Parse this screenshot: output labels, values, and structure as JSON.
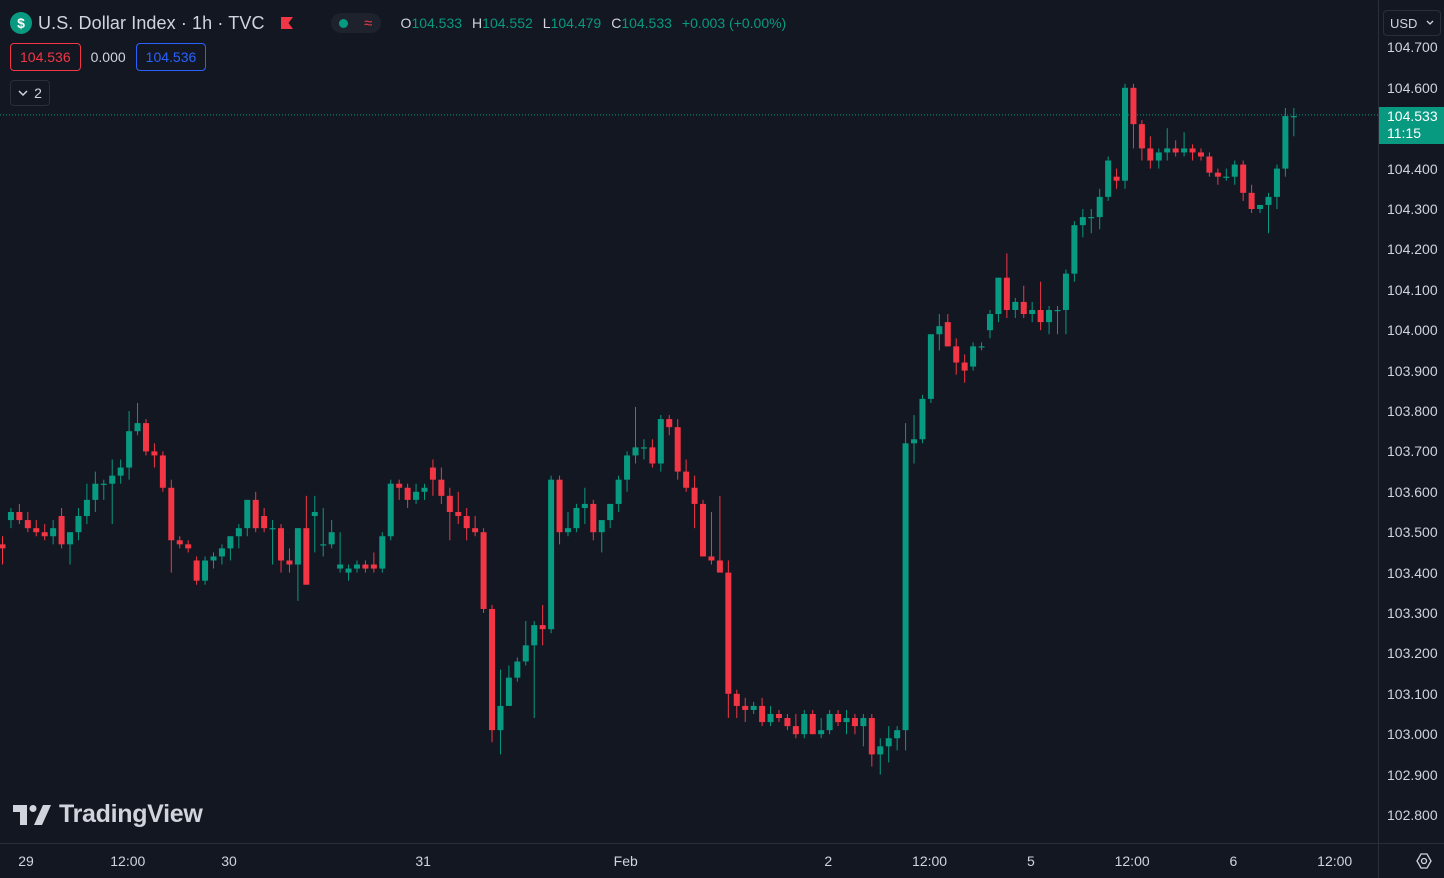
{
  "header": {
    "symbol_icon": "$",
    "title": "U.S. Dollar Index · 1h · TVC",
    "ohlc": {
      "o_label": "O",
      "o": "104.533",
      "h_label": "H",
      "h": "104.552",
      "l_label": "L",
      "l": "104.479",
      "c_label": "C",
      "c": "104.533",
      "change": "+0.003 (+0.00%)"
    }
  },
  "trade": {
    "sell": "104.536",
    "spread": "0.000",
    "buy": "104.536"
  },
  "indicators": {
    "count": "2"
  },
  "logo": {
    "text": "TradingView"
  },
  "price_axis": {
    "currency": "USD",
    "labels": [
      "104.700",
      "104.600",
      "104.400",
      "104.300",
      "104.200",
      "104.100",
      "104.000",
      "103.900",
      "103.800",
      "103.700",
      "103.600",
      "103.500",
      "103.400",
      "103.300",
      "103.200",
      "103.100",
      "103.000",
      "102.900",
      "102.800"
    ],
    "current_price": "104.533",
    "countdown": "11:15"
  },
  "time_axis": {
    "labels": [
      {
        "text": "29",
        "i": 0
      },
      {
        "text": "12:00",
        "i": 12
      },
      {
        "text": "30",
        "i": 24
      },
      {
        "text": "31",
        "i": 47
      },
      {
        "text": "Feb",
        "i": 71
      },
      {
        "text": "2",
        "i": 95
      },
      {
        "text": "12:00",
        "i": 107
      },
      {
        "text": "5",
        "i": 119
      },
      {
        "text": "12:00",
        "i": 131
      },
      {
        "text": "6",
        "i": 143
      },
      {
        "text": "12:00",
        "i": 155
      }
    ]
  },
  "colors": {
    "up": "#089981",
    "down": "#f23645",
    "background": "#131722"
  },
  "chart_data": {
    "type": "candlestick",
    "interval": "1h",
    "y_range": [
      102.8,
      104.7
    ],
    "last_price": 104.533,
    "candles": [
      [
        103.47,
        103.49,
        103.42,
        103.46
      ],
      [
        103.53,
        103.56,
        103.51,
        103.55
      ],
      [
        103.55,
        103.57,
        103.52,
        103.53
      ],
      [
        103.53,
        103.55,
        103.5,
        103.51
      ],
      [
        103.51,
        103.53,
        103.49,
        103.5
      ],
      [
        103.5,
        103.52,
        103.48,
        103.49
      ],
      [
        103.49,
        103.53,
        103.47,
        103.51
      ],
      [
        103.54,
        103.56,
        103.46,
        103.47
      ],
      [
        103.47,
        103.5,
        103.42,
        103.5
      ],
      [
        103.5,
        103.56,
        103.48,
        103.54
      ],
      [
        103.54,
        103.62,
        103.52,
        103.58
      ],
      [
        103.58,
        103.65,
        103.55,
        103.62
      ],
      [
        103.62,
        103.63,
        103.58,
        103.62
      ],
      [
        103.62,
        103.68,
        103.52,
        103.64
      ],
      [
        103.64,
        103.68,
        103.62,
        103.66
      ],
      [
        103.66,
        103.8,
        103.63,
        103.75
      ],
      [
        103.75,
        103.82,
        103.74,
        103.77
      ],
      [
        103.77,
        103.78,
        103.69,
        103.7
      ],
      [
        103.7,
        103.72,
        103.66,
        103.69
      ],
      [
        103.69,
        103.7,
        103.6,
        103.61
      ],
      [
        103.61,
        103.63,
        103.4,
        103.48
      ],
      [
        103.48,
        103.49,
        103.46,
        103.47
      ],
      [
        103.47,
        103.48,
        103.45,
        103.46
      ],
      [
        103.43,
        103.44,
        103.37,
        103.38
      ],
      [
        103.38,
        103.44,
        103.37,
        103.43
      ],
      [
        103.43,
        103.45,
        103.41,
        103.44
      ],
      [
        103.44,
        103.47,
        103.42,
        103.46
      ],
      [
        103.46,
        103.49,
        103.43,
        103.49
      ],
      [
        103.49,
        103.52,
        103.46,
        103.51
      ],
      [
        103.51,
        103.58,
        103.49,
        103.58
      ],
      [
        103.58,
        103.6,
        103.5,
        103.51
      ],
      [
        103.54,
        103.56,
        103.5,
        103.51
      ],
      [
        103.51,
        103.53,
        103.42,
        103.51
      ],
      [
        103.51,
        103.52,
        103.4,
        103.43
      ],
      [
        103.43,
        103.46,
        103.4,
        103.42
      ],
      [
        103.42,
        103.51,
        103.33,
        103.51
      ],
      [
        103.51,
        103.59,
        103.37,
        103.37
      ],
      [
        103.54,
        103.59,
        103.45,
        103.55
      ],
      [
        103.47,
        103.56,
        103.44,
        103.47
      ],
      [
        103.47,
        103.53,
        103.46,
        103.5
      ],
      [
        103.41,
        103.5,
        103.4,
        103.42
      ],
      [
        103.4,
        103.42,
        103.38,
        103.41
      ],
      [
        103.41,
        103.43,
        103.4,
        103.42
      ],
      [
        103.42,
        103.43,
        103.4,
        103.41
      ],
      [
        103.42,
        103.45,
        103.4,
        103.41
      ],
      [
        103.41,
        103.5,
        103.4,
        103.49
      ],
      [
        103.49,
        103.63,
        103.48,
        103.62
      ],
      [
        103.62,
        103.63,
        103.58,
        103.61
      ],
      [
        103.61,
        103.62,
        103.56,
        103.58
      ],
      [
        103.58,
        103.62,
        103.57,
        103.6
      ],
      [
        103.6,
        103.62,
        103.58,
        103.61
      ],
      [
        103.66,
        103.68,
        103.59,
        103.63
      ],
      [
        103.63,
        103.66,
        103.57,
        103.59
      ],
      [
        103.59,
        103.61,
        103.48,
        103.55
      ],
      [
        103.55,
        103.6,
        103.52,
        103.54
      ],
      [
        103.54,
        103.56,
        103.48,
        103.51
      ],
      [
        103.51,
        103.54,
        103.49,
        103.5
      ],
      [
        103.5,
        103.51,
        103.3,
        103.31
      ],
      [
        103.31,
        103.32,
        102.98,
        103.01
      ],
      [
        103.01,
        103.16,
        102.95,
        103.07
      ],
      [
        103.07,
        103.17,
        103.07,
        103.14
      ],
      [
        103.14,
        103.19,
        103.13,
        103.18
      ],
      [
        103.18,
        103.28,
        103.17,
        103.22
      ],
      [
        103.22,
        103.28,
        103.04,
        103.27
      ],
      [
        103.27,
        103.32,
        103.22,
        103.26
      ],
      [
        103.26,
        103.64,
        103.25,
        103.63
      ],
      [
        103.63,
        103.64,
        103.47,
        103.5
      ],
      [
        103.5,
        103.55,
        103.49,
        103.51
      ],
      [
        103.51,
        103.57,
        103.5,
        103.56
      ],
      [
        103.56,
        103.61,
        103.52,
        103.57
      ],
      [
        103.57,
        103.58,
        103.48,
        103.5
      ],
      [
        103.5,
        103.52,
        103.45,
        103.53
      ],
      [
        103.53,
        103.57,
        103.51,
        103.57
      ],
      [
        103.57,
        103.64,
        103.55,
        103.63
      ],
      [
        103.63,
        103.7,
        103.6,
        103.69
      ],
      [
        103.69,
        103.81,
        103.67,
        103.71
      ],
      [
        103.71,
        103.73,
        103.68,
        103.71
      ],
      [
        103.71,
        103.73,
        103.66,
        103.67
      ],
      [
        103.67,
        103.79,
        103.65,
        103.78
      ],
      [
        103.78,
        103.79,
        103.74,
        103.76
      ],
      [
        103.76,
        103.78,
        103.63,
        103.65
      ],
      [
        103.65,
        103.68,
        103.6,
        103.61
      ],
      [
        103.61,
        103.64,
        103.51,
        103.57
      ],
      [
        103.57,
        103.58,
        103.44,
        103.44
      ],
      [
        103.44,
        103.55,
        103.42,
        103.43
      ],
      [
        103.43,
        103.59,
        103.41,
        103.4
      ],
      [
        103.4,
        103.43,
        103.04,
        103.1
      ],
      [
        103.1,
        103.11,
        103.04,
        103.07
      ],
      [
        103.07,
        103.09,
        103.03,
        103.06
      ],
      [
        103.06,
        103.08,
        103.05,
        103.07
      ],
      [
        103.07,
        103.09,
        103.02,
        103.03
      ],
      [
        103.03,
        103.07,
        103.02,
        103.05
      ],
      [
        103.05,
        103.06,
        103.03,
        103.04
      ],
      [
        103.04,
        103.05,
        103.01,
        103.02
      ],
      [
        103.02,
        103.05,
        102.99,
        103.0
      ],
      [
        103.0,
        103.06,
        102.99,
        103.05
      ],
      [
        103.05,
        103.06,
        103.0,
        103.0
      ],
      [
        103.0,
        103.04,
        102.99,
        103.01
      ],
      [
        103.01,
        103.06,
        103.0,
        103.05
      ],
      [
        103.05,
        103.06,
        103.02,
        103.03
      ],
      [
        103.03,
        103.06,
        103.0,
        103.04
      ],
      [
        103.04,
        103.05,
        103.0,
        103.02
      ],
      [
        103.02,
        103.05,
        102.97,
        103.04
      ],
      [
        103.04,
        103.05,
        102.92,
        102.95
      ],
      [
        102.95,
        102.99,
        102.9,
        102.97
      ],
      [
        102.97,
        103.02,
        102.93,
        102.99
      ],
      [
        102.99,
        103.02,
        102.96,
        103.01
      ],
      [
        103.01,
        103.77,
        102.96,
        103.72
      ],
      [
        103.72,
        103.79,
        103.67,
        103.73
      ],
      [
        103.73,
        103.84,
        103.72,
        103.83
      ],
      [
        103.83,
        103.99,
        103.82,
        103.99
      ],
      [
        103.99,
        104.04,
        103.95,
        104.01
      ],
      [
        104.02,
        104.04,
        103.96,
        103.96
      ],
      [
        103.96,
        103.98,
        103.89,
        103.92
      ],
      [
        103.92,
        103.94,
        103.87,
        103.9
      ],
      [
        103.91,
        103.97,
        103.9,
        103.96
      ],
      [
        103.96,
        103.97,
        103.95,
        103.96
      ],
      [
        104.0,
        104.05,
        103.98,
        104.04
      ],
      [
        104.04,
        104.13,
        104.02,
        104.13
      ],
      [
        104.13,
        104.19,
        104.03,
        104.05
      ],
      [
        104.05,
        104.08,
        104.03,
        104.07
      ],
      [
        104.07,
        104.11,
        104.03,
        104.04
      ],
      [
        104.04,
        104.07,
        104.02,
        104.05
      ],
      [
        104.05,
        104.12,
        104.0,
        104.02
      ],
      [
        104.02,
        104.06,
        103.99,
        104.05
      ],
      [
        104.05,
        104.06,
        103.99,
        104.05
      ],
      [
        104.05,
        104.15,
        103.99,
        104.14
      ],
      [
        104.14,
        104.27,
        104.12,
        104.26
      ],
      [
        104.26,
        104.3,
        104.23,
        104.28
      ],
      [
        104.28,
        104.3,
        104.24,
        104.28
      ],
      [
        104.28,
        104.35,
        104.25,
        104.33
      ],
      [
        104.33,
        104.43,
        104.32,
        104.42
      ],
      [
        104.38,
        104.4,
        104.35,
        104.37
      ],
      [
        104.37,
        104.61,
        104.35,
        104.6
      ],
      [
        104.6,
        104.61,
        104.45,
        104.51
      ],
      [
        104.51,
        104.52,
        104.42,
        104.45
      ],
      [
        104.45,
        104.48,
        104.4,
        104.42
      ],
      [
        104.42,
        104.45,
        104.4,
        104.44
      ],
      [
        104.44,
        104.5,
        104.42,
        104.45
      ],
      [
        104.45,
        104.47,
        104.43,
        104.44
      ],
      [
        104.44,
        104.49,
        104.43,
        104.45
      ],
      [
        104.45,
        104.46,
        104.42,
        104.44
      ],
      [
        104.44,
        104.45,
        104.42,
        104.43
      ],
      [
        104.43,
        104.44,
        104.38,
        104.39
      ],
      [
        104.39,
        104.4,
        104.36,
        104.38
      ],
      [
        104.38,
        104.4,
        104.37,
        104.38
      ],
      [
        104.38,
        104.42,
        104.36,
        104.41
      ],
      [
        104.41,
        104.42,
        104.32,
        104.34
      ],
      [
        104.34,
        104.36,
        104.29,
        104.3
      ],
      [
        104.3,
        104.31,
        104.29,
        104.31
      ],
      [
        104.31,
        104.34,
        104.24,
        104.33
      ],
      [
        104.33,
        104.41,
        104.3,
        104.4
      ],
      [
        104.4,
        104.55,
        104.38,
        104.53
      ],
      [
        104.53,
        104.55,
        104.48,
        104.53
      ]
    ]
  }
}
